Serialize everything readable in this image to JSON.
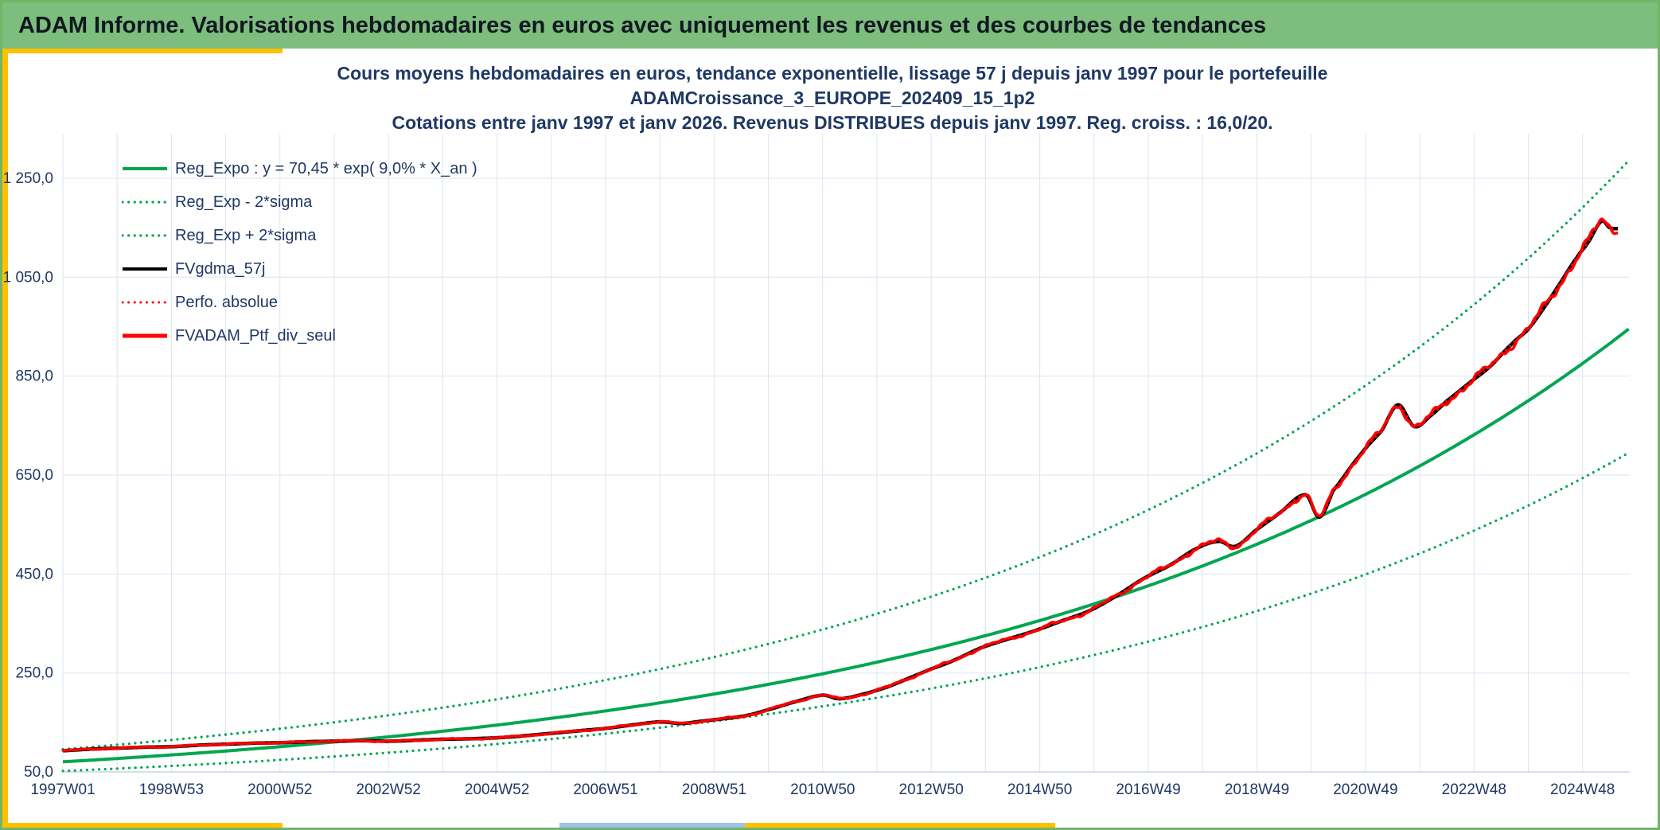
{
  "header": {
    "title": "ADAM Informe. Valorisations hebdomadaires en euros avec uniquement les revenus et des courbes de tendances",
    "background": "#7dbd7e"
  },
  "accents": {
    "gold": "#ffc000",
    "blue": "#9dc3e6",
    "frame": "#71b567"
  },
  "chart_data": {
    "type": "line",
    "title_lines": [
      "Cours moyens hebdomadaires en euros, tendance exponentielle, lissage 57 j depuis janv 1997 pour le portefeuille",
      "ADAMCroissance_3_EUROPE_202409_15_1p2",
      "Cotations entre janv 1997 et janv 2026. Revenus DISTRIBUES depuis janv 1997. Reg. croiss. : 16,0/20."
    ],
    "title_color": "#1f3864",
    "text_color": "#1f3864",
    "grid_color": "#dbe5f1",
    "axis_line_color": "#aebedb",
    "x_axis": {
      "tick_labels": [
        "1997W01",
        "1998W53",
        "2000W52",
        "2002W52",
        "2004W52",
        "2006W51",
        "2008W51",
        "2010W50",
        "2012W50",
        "2014W50",
        "2016W49",
        "2018W49",
        "2020W49",
        "2022W48",
        "2024W48"
      ],
      "start_year": 1997.0,
      "end_year": 2025.87,
      "tick_interval_years": 2,
      "grid_interval_years": 1
    },
    "y_axis": {
      "tick_labels": [
        "50,0",
        "250,0",
        "450,0",
        "650,0",
        "850,0",
        "1 050,0",
        "1 250,0"
      ],
      "tick_values": [
        50,
        250,
        450,
        650,
        850,
        1050,
        1250
      ],
      "min": 50,
      "max": 1340
    },
    "regression": {
      "formula_label": "y = 70,45 * exp( 9,0% *  X_an )",
      "a": 70.45,
      "k": 0.09,
      "sigma_factor": 1.36,
      "rating": "Reg. croiss. : 16,0/20."
    },
    "legend": [
      {
        "label": "Reg_Expo : y = 70,45 * exp( 9,0% *  X_an )",
        "color": "#00a651",
        "dash": "solid",
        "width": 4
      },
      {
        "label": "Reg_Exp - 2*sigma",
        "color": "#00a651",
        "dash": "dotted",
        "width": 3.2
      },
      {
        "label": "Reg_Exp + 2*sigma",
        "color": "#00a651",
        "dash": "dotted",
        "width": 3.2
      },
      {
        "label": "FVgdma_57j",
        "color": "#000000",
        "dash": "solid",
        "width": 4
      },
      {
        "label": "Perfo. absolue",
        "color": "#fe0000",
        "dash": "dotted",
        "width": 3
      },
      {
        "label": "FVADAM_Ptf_div_seul",
        "color": "#fe0000",
        "dash": "solid",
        "width": 5
      }
    ],
    "series": [
      {
        "name": "FVADAM_Ptf_div_seul",
        "color": "#fe0000",
        "overlapping_series": [
          "FVgdma_57j",
          "Perfo. absolue"
        ],
        "x": [
          1997.0,
          1997.5,
          1998.0,
          1998.5,
          1999.0,
          1999.5,
          2000.0,
          2000.5,
          2001.0,
          2001.5,
          2002.0,
          2002.5,
          2003.0,
          2003.5,
          2004.0,
          2004.5,
          2005.0,
          2005.5,
          2006.0,
          2006.5,
          2007.0,
          2007.5,
          2008.0,
          2008.4,
          2008.8,
          2009.2,
          2009.6,
          2010.0,
          2010.5,
          2011.0,
          2011.3,
          2011.7,
          2012.2,
          2012.6,
          2013.0,
          2013.4,
          2013.9,
          2014.4,
          2014.9,
          2015.4,
          2015.9,
          2016.4,
          2016.9,
          2017.4,
          2017.9,
          2018.3,
          2018.6,
          2019.0,
          2019.4,
          2019.9,
          2020.15,
          2020.4,
          2020.9,
          2021.3,
          2021.6,
          2021.9,
          2022.2,
          2022.5,
          2022.9,
          2023.3,
          2023.7,
          2024.0,
          2024.3,
          2024.6,
          2024.9,
          2025.1,
          2025.35,
          2025.5,
          2025.65
        ],
        "values": [
          93,
          96,
          98,
          100,
          101,
          104,
          106,
          108,
          109,
          111,
          112,
          113,
          112,
          114,
          116,
          117,
          119,
          123,
          128,
          133,
          138,
          145,
          151,
          148,
          153,
          158,
          164,
          176,
          192,
          205,
          198,
          206,
          222,
          240,
          258,
          275,
          300,
          318,
          335,
          355,
          375,
          405,
          440,
          468,
          502,
          516,
          506,
          540,
          572,
          610,
          565,
          618,
          690,
          740,
          792,
          748,
          770,
          800,
          835,
          870,
          915,
          945,
          990,
          1040,
          1090,
          1120,
          1163,
          1150,
          1148
        ]
      }
    ],
    "noise_amplitude": 0.007
  }
}
